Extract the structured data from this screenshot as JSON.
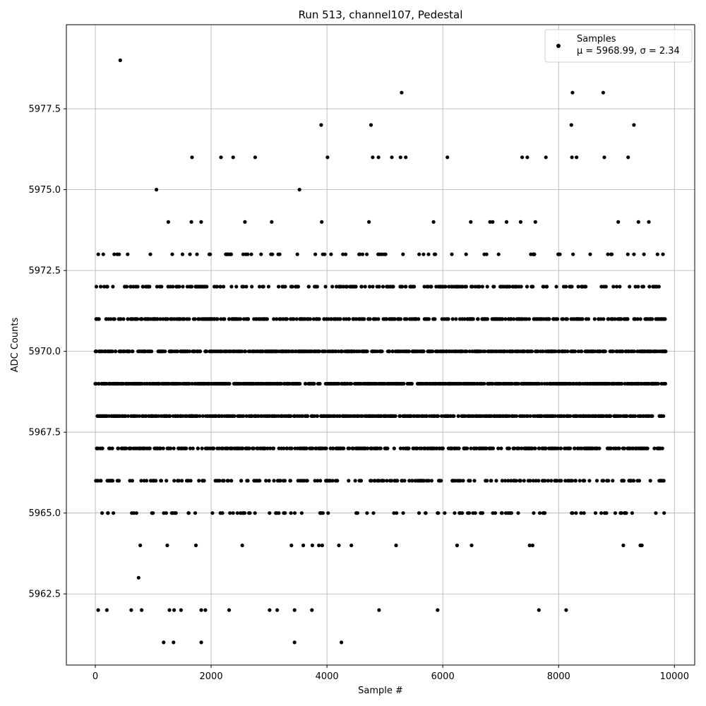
{
  "chart_data": {
    "type": "scatter",
    "title": "Run 513, channel107, Pedestal",
    "xlabel": "Sample #",
    "ylabel": "ADC Counts",
    "xlim": [
      -500,
      10350
    ],
    "ylim": [
      5960.3,
      5980.1
    ],
    "xticks": [
      0,
      2000,
      4000,
      6000,
      8000,
      10000
    ],
    "yticks": [
      5962.5,
      5965.0,
      5967.5,
      5970.0,
      5972.5,
      5975.0,
      5977.5
    ],
    "xtick_labels": [
      "0",
      "2000",
      "4000",
      "6000",
      "8000",
      "10000"
    ],
    "ytick_labels": [
      "5962.5",
      "5965.0",
      "5967.5",
      "5970.0",
      "5972.5",
      "5975.0",
      "5977.5"
    ],
    "grid": true,
    "legend_position": "top-right",
    "marker_color": "#000000",
    "series": [
      {
        "name": "Samples",
        "stats_label": "μ = 5968.99, σ = 2.34",
        "n_samples": 9850,
        "mu": 5968.99,
        "sigma": 2.34,
        "outliers": [
          [
            430,
            5979
          ],
          [
            5290,
            5978
          ],
          [
            8240,
            5978
          ],
          [
            8770,
            5978
          ],
          [
            3900,
            5977
          ],
          [
            4760,
            5977
          ],
          [
            8220,
            5977
          ],
          [
            9300,
            5977
          ],
          [
            1670,
            5976
          ],
          [
            2170,
            5976
          ],
          [
            2380,
            5976
          ],
          [
            2760,
            5976
          ],
          [
            4010,
            5976
          ],
          [
            4790,
            5976
          ],
          [
            4890,
            5976
          ],
          [
            5120,
            5976
          ],
          [
            5270,
            5976
          ],
          [
            5360,
            5976
          ],
          [
            6080,
            5976
          ],
          [
            7370,
            5976
          ],
          [
            7460,
            5976
          ],
          [
            7780,
            5976
          ],
          [
            8230,
            5976
          ],
          [
            8310,
            5976
          ],
          [
            8790,
            5976
          ],
          [
            9200,
            5976
          ],
          [
            1180,
            5961
          ],
          [
            1350,
            5961
          ],
          [
            1830,
            5961
          ],
          [
            3440,
            5961
          ],
          [
            4250,
            5961
          ],
          [
            50,
            5962
          ],
          [
            200,
            5962
          ],
          [
            620,
            5962
          ],
          [
            800,
            5962
          ],
          [
            1280,
            5962
          ],
          [
            1360,
            5962
          ],
          [
            1480,
            5962
          ],
          [
            1830,
            5962
          ],
          [
            1900,
            5962
          ],
          [
            2310,
            5962
          ],
          [
            3010,
            5962
          ],
          [
            3140,
            5962
          ],
          [
            3440,
            5962
          ],
          [
            3740,
            5962
          ],
          [
            4900,
            5962
          ],
          [
            5910,
            5962
          ],
          [
            7660,
            5962
          ],
          [
            8130,
            5962
          ]
        ]
      }
    ]
  }
}
